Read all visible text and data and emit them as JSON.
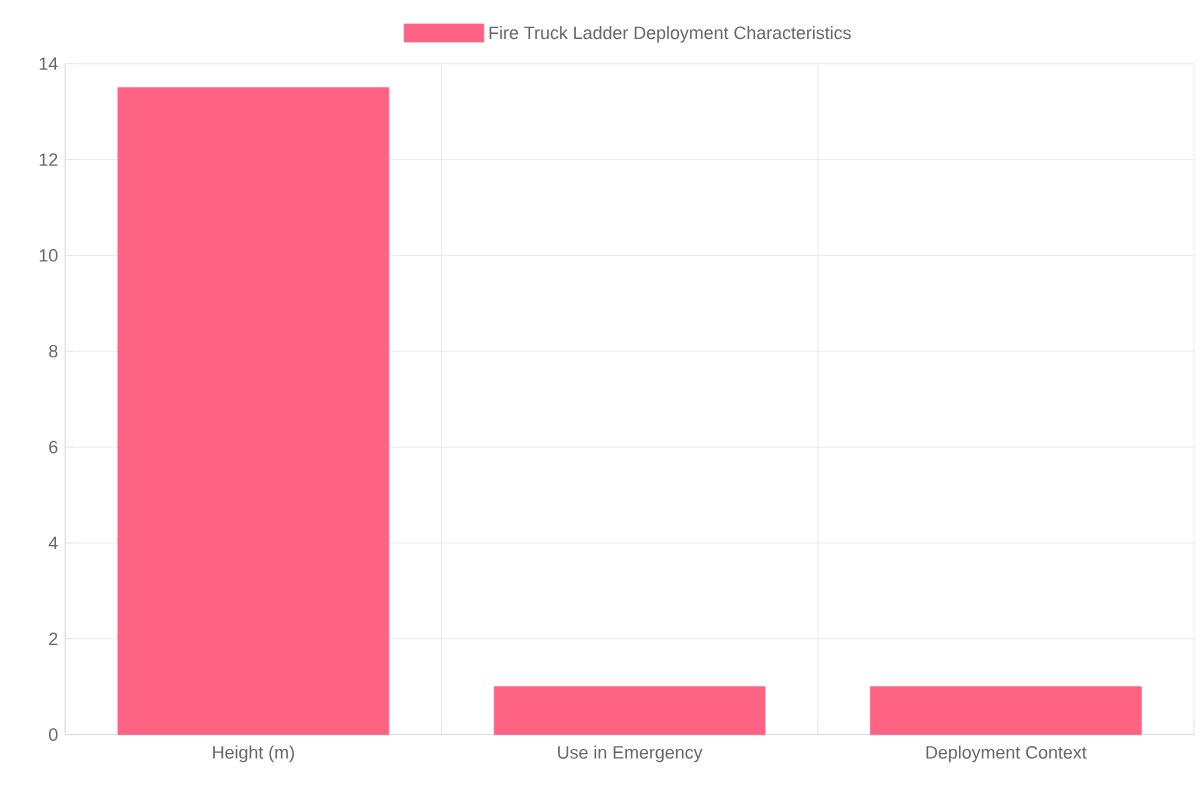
{
  "chart_data": {
    "type": "bar",
    "categories": [
      "Height (m)",
      "Use in Emergency",
      "Deployment Context"
    ],
    "series": [
      {
        "name": "Fire Truck Ladder Deployment Characteristics",
        "color": "#ff6384",
        "values": [
          13.5,
          1,
          1
        ]
      }
    ],
    "ylim": [
      0,
      14
    ],
    "yticks": [
      0,
      2,
      4,
      6,
      8,
      10,
      12,
      14
    ],
    "grid": true,
    "legend": "top"
  }
}
